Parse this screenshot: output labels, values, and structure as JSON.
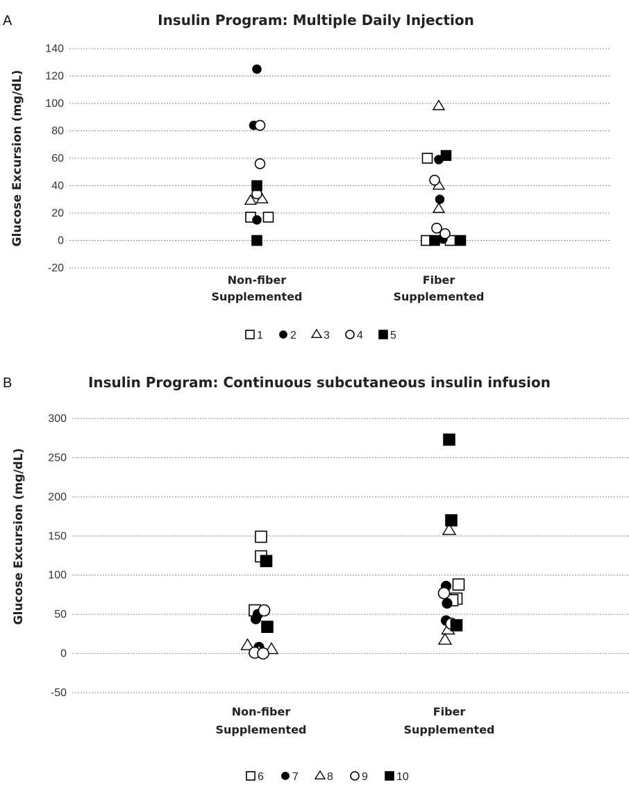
{
  "chart_data": [
    {
      "type": "scatter",
      "panel": "A",
      "title": "Insulin Program: Multiple Daily Injection",
      "ylabel": "Glucose Excursion (mg/dL)",
      "ylim": [
        -20,
        140
      ],
      "yticks": [
        -20,
        0,
        20,
        40,
        60,
        80,
        100,
        120,
        140
      ],
      "categories": [
        "Non-fiber Supplemented",
        "Fiber Supplemented"
      ],
      "grid": true,
      "legend_position": "bottom",
      "series": [
        {
          "name": "1",
          "marker": "open-square",
          "points": [
            {
              "category": 0,
              "offset": -0.12,
              "y": 17
            },
            {
              "category": 0,
              "offset": 0.22,
              "y": 17
            },
            {
              "category": 1,
              "offset": -0.22,
              "y": 60
            },
            {
              "category": 1,
              "offset": -0.24,
              "y": 0
            },
            {
              "category": 1,
              "offset": 0.22,
              "y": 0
            }
          ]
        },
        {
          "name": "2",
          "marker": "filled-circle",
          "points": [
            {
              "category": 0,
              "offset": 0.0,
              "y": 125
            },
            {
              "category": 0,
              "offset": -0.06,
              "y": 84
            },
            {
              "category": 0,
              "offset": 0.0,
              "y": 15
            },
            {
              "category": 1,
              "offset": 0.0,
              "y": 59
            },
            {
              "category": 1,
              "offset": 0.02,
              "y": 30
            },
            {
              "category": 1,
              "offset": 0.08,
              "y": 1
            }
          ]
        },
        {
          "name": "3",
          "marker": "open-triangle",
          "points": [
            {
              "category": 0,
              "offset": -0.12,
              "y": 29
            },
            {
              "category": 0,
              "offset": 0.1,
              "y": 30
            },
            {
              "category": 1,
              "offset": 0.0,
              "y": 98
            },
            {
              "category": 1,
              "offset": 0.0,
              "y": 40
            },
            {
              "category": 1,
              "offset": 0.0,
              "y": 23
            }
          ]
        },
        {
          "name": "4",
          "marker": "open-circle",
          "points": [
            {
              "category": 0,
              "offset": 0.06,
              "y": 84
            },
            {
              "category": 0,
              "offset": 0.06,
              "y": 56
            },
            {
              "category": 0,
              "offset": 0.0,
              "y": 34
            },
            {
              "category": 1,
              "offset": -0.08,
              "y": 44
            },
            {
              "category": 1,
              "offset": -0.04,
              "y": 9
            },
            {
              "category": 1,
              "offset": 0.12,
              "y": 5
            }
          ]
        },
        {
          "name": "5",
          "marker": "filled-square",
          "points": [
            {
              "category": 0,
              "offset": 0.0,
              "y": 40
            },
            {
              "category": 0,
              "offset": 0.0,
              "y": 0
            },
            {
              "category": 1,
              "offset": 0.14,
              "y": 62
            },
            {
              "category": 1,
              "offset": -0.08,
              "y": 0
            },
            {
              "category": 1,
              "offset": 0.42,
              "y": 0
            }
          ]
        }
      ]
    },
    {
      "type": "scatter",
      "panel": "B",
      "title": "Insulin Program: Continuous subcutaneous insulin infusion",
      "ylabel": "Glucose Excursion (mg/dL)",
      "ylim": [
        -50,
        300
      ],
      "yticks": [
        -50,
        0,
        50,
        100,
        150,
        200,
        250,
        300
      ],
      "categories": [
        "Non-fiber Supplemented",
        "Fiber Supplemented"
      ],
      "grid": true,
      "legend_position": "bottom",
      "series": [
        {
          "name": "6",
          "marker": "open-square",
          "points": [
            {
              "category": 0,
              "offset": 0.0,
              "y": 149
            },
            {
              "category": 0,
              "offset": 0.0,
              "y": 124
            },
            {
              "category": 0,
              "offset": -0.12,
              "y": 55
            },
            {
              "category": 1,
              "offset": 0.18,
              "y": 88
            },
            {
              "category": 1,
              "offset": 0.14,
              "y": 70
            },
            {
              "category": 1,
              "offset": 0.06,
              "y": 68
            }
          ]
        },
        {
          "name": "7",
          "marker": "filled-circle",
          "points": [
            {
              "category": 0,
              "offset": -0.06,
              "y": 50
            },
            {
              "category": 0,
              "offset": -0.1,
              "y": 44
            },
            {
              "category": 0,
              "offset": -0.04,
              "y": 8
            },
            {
              "category": 1,
              "offset": -0.06,
              "y": 86
            },
            {
              "category": 1,
              "offset": -0.04,
              "y": 64
            },
            {
              "category": 1,
              "offset": -0.06,
              "y": 42
            }
          ]
        },
        {
          "name": "8",
          "marker": "open-triangle",
          "points": [
            {
              "category": 0,
              "offset": -0.26,
              "y": 10
            },
            {
              "category": 0,
              "offset": 0.2,
              "y": 5
            },
            {
              "category": 0,
              "offset": -0.04,
              "y": 2
            },
            {
              "category": 1,
              "offset": 0.0,
              "y": 157
            },
            {
              "category": 1,
              "offset": -0.02,
              "y": 30
            },
            {
              "category": 1,
              "offset": -0.08,
              "y": 17
            }
          ]
        },
        {
          "name": "9",
          "marker": "open-circle",
          "points": [
            {
              "category": 0,
              "offset": 0.06,
              "y": 55
            },
            {
              "category": 0,
              "offset": -0.12,
              "y": 1
            },
            {
              "category": 0,
              "offset": 0.04,
              "y": 0
            },
            {
              "category": 1,
              "offset": -0.1,
              "y": 77
            },
            {
              "category": 1,
              "offset": 0.04,
              "y": 38
            }
          ]
        },
        {
          "name": "10",
          "marker": "filled-square",
          "points": [
            {
              "category": 0,
              "offset": 0.1,
              "y": 118
            },
            {
              "category": 0,
              "offset": 0.12,
              "y": 34
            },
            {
              "category": 1,
              "offset": 0.0,
              "y": 273
            },
            {
              "category": 1,
              "offset": 0.04,
              "y": 170
            },
            {
              "category": 1,
              "offset": 0.14,
              "y": 36
            }
          ]
        }
      ]
    }
  ]
}
